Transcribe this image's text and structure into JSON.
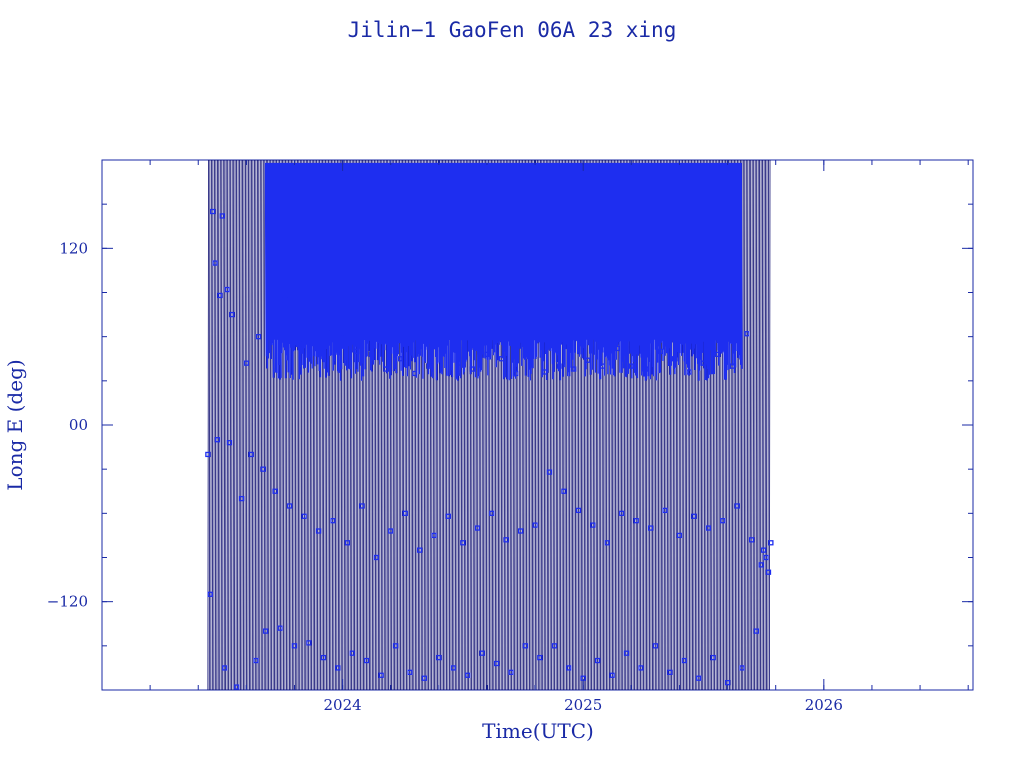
{
  "chart_data": {
    "type": "scatter",
    "title": "Jilin−1 GaoFen 06A 23 xing",
    "xlabel": "Time(UTC)",
    "ylabel": "Long E (deg)",
    "x_unit": "year",
    "xlim": [
      2023.0,
      2026.62
    ],
    "ylim": [
      -180,
      180
    ],
    "x_ticks": [
      {
        "value": 2024,
        "label": "2024"
      },
      {
        "value": 2025,
        "label": "2025"
      },
      {
        "value": 2026,
        "label": "2026"
      }
    ],
    "y_ticks": [
      {
        "value": 120,
        "label": "120"
      },
      {
        "value": 0,
        "label": "00"
      },
      {
        "value": -120,
        "label": "−120"
      }
    ],
    "x_minor_step": 0.2,
    "y_minor_step": 30,
    "grid": false,
    "colors": {
      "axes": "#1a2aa6",
      "trace": "#0a0a6e",
      "points": "#1e2ef0"
    },
    "series": [
      {
        "data_range": {
          "x_start": 2023.44,
          "x_end": 2025.78
        },
        "points": [
          [
            2023.44,
            -20
          ],
          [
            2023.45,
            -115
          ],
          [
            2023.46,
            145
          ],
          [
            2023.47,
            110
          ],
          [
            2023.48,
            -10
          ],
          [
            2023.49,
            88
          ],
          [
            2023.5,
            142
          ],
          [
            2023.51,
            -165
          ],
          [
            2023.52,
            92
          ],
          [
            2023.53,
            -12
          ],
          [
            2023.54,
            75
          ],
          [
            2023.56,
            -178
          ],
          [
            2023.58,
            -50
          ],
          [
            2023.6,
            42
          ],
          [
            2023.62,
            -20
          ],
          [
            2023.64,
            -160
          ],
          [
            2023.65,
            60
          ],
          [
            2023.67,
            -30
          ],
          [
            2023.68,
            -140
          ],
          [
            2023.7,
            95
          ],
          [
            2023.72,
            -45
          ],
          [
            2023.74,
            -138
          ],
          [
            2023.76,
            85
          ],
          [
            2023.78,
            -55
          ],
          [
            2023.8,
            -150
          ],
          [
            2023.82,
            55
          ],
          [
            2023.84,
            -62
          ],
          [
            2023.86,
            -148
          ],
          [
            2023.88,
            70
          ],
          [
            2023.9,
            -72
          ],
          [
            2023.92,
            -158
          ],
          [
            2023.94,
            65
          ],
          [
            2023.96,
            -65
          ],
          [
            2023.98,
            -165
          ],
          [
            2024.0,
            60
          ],
          [
            2024.02,
            -80
          ],
          [
            2024.04,
            -155
          ],
          [
            2024.06,
            50
          ],
          [
            2024.08,
            -55
          ],
          [
            2024.1,
            -160
          ],
          [
            2024.12,
            48
          ],
          [
            2024.14,
            -90
          ],
          [
            2024.16,
            -170
          ],
          [
            2024.18,
            38
          ],
          [
            2024.2,
            -72
          ],
          [
            2024.22,
            -150
          ],
          [
            2024.24,
            45
          ],
          [
            2024.26,
            -60
          ],
          [
            2024.28,
            -168
          ],
          [
            2024.3,
            35
          ],
          [
            2024.32,
            -85
          ],
          [
            2024.34,
            -172
          ],
          [
            2024.36,
            40
          ],
          [
            2024.38,
            -75
          ],
          [
            2024.4,
            -158
          ],
          [
            2024.42,
            55
          ],
          [
            2024.44,
            -62
          ],
          [
            2024.46,
            -165
          ],
          [
            2024.48,
            42
          ],
          [
            2024.5,
            -80
          ],
          [
            2024.52,
            -170
          ],
          [
            2024.54,
            38
          ],
          [
            2024.56,
            -70
          ],
          [
            2024.58,
            -155
          ],
          [
            2024.6,
            48
          ],
          [
            2024.62,
            -60
          ],
          [
            2024.64,
            -162
          ],
          [
            2024.66,
            45
          ],
          [
            2024.68,
            -78
          ],
          [
            2024.7,
            -168
          ],
          [
            2024.72,
            35
          ],
          [
            2024.74,
            -72
          ],
          [
            2024.76,
            -150
          ],
          [
            2024.78,
            42
          ],
          [
            2024.8,
            -68
          ],
          [
            2024.82,
            -158
          ],
          [
            2024.84,
            36
          ],
          [
            2024.86,
            -32
          ],
          [
            2024.88,
            -150
          ],
          [
            2024.9,
            40
          ],
          [
            2024.92,
            -45
          ],
          [
            2024.94,
            -165
          ],
          [
            2024.96,
            38
          ],
          [
            2024.98,
            -58
          ],
          [
            2025.0,
            -172
          ],
          [
            2025.02,
            44
          ],
          [
            2025.04,
            -68
          ],
          [
            2025.06,
            -160
          ],
          [
            2025.08,
            40
          ],
          [
            2025.1,
            -80
          ],
          [
            2025.12,
            -170
          ],
          [
            2025.14,
            52
          ],
          [
            2025.16,
            -60
          ],
          [
            2025.18,
            -155
          ],
          [
            2025.2,
            40
          ],
          [
            2025.22,
            -65
          ],
          [
            2025.24,
            -165
          ],
          [
            2025.26,
            38
          ],
          [
            2025.28,
            -70
          ],
          [
            2025.3,
            -150
          ],
          [
            2025.32,
            50
          ],
          [
            2025.34,
            -58
          ],
          [
            2025.36,
            -168
          ],
          [
            2025.38,
            45
          ],
          [
            2025.4,
            -75
          ],
          [
            2025.42,
            -160
          ],
          [
            2025.44,
            36
          ],
          [
            2025.46,
            -62
          ],
          [
            2025.48,
            -172
          ],
          [
            2025.5,
            42
          ],
          [
            2025.52,
            -70
          ],
          [
            2025.54,
            -158
          ],
          [
            2025.56,
            48
          ],
          [
            2025.58,
            -65
          ],
          [
            2025.6,
            -175
          ],
          [
            2025.62,
            40
          ],
          [
            2025.64,
            -55
          ],
          [
            2025.66,
            -165
          ],
          [
            2025.68,
            62
          ],
          [
            2025.7,
            -78
          ],
          [
            2025.72,
            -140
          ],
          [
            2025.74,
            -95
          ],
          [
            2025.75,
            -85
          ],
          [
            2025.76,
            -90
          ],
          [
            2025.77,
            -100
          ],
          [
            2025.78,
            -80
          ]
        ]
      }
    ]
  }
}
